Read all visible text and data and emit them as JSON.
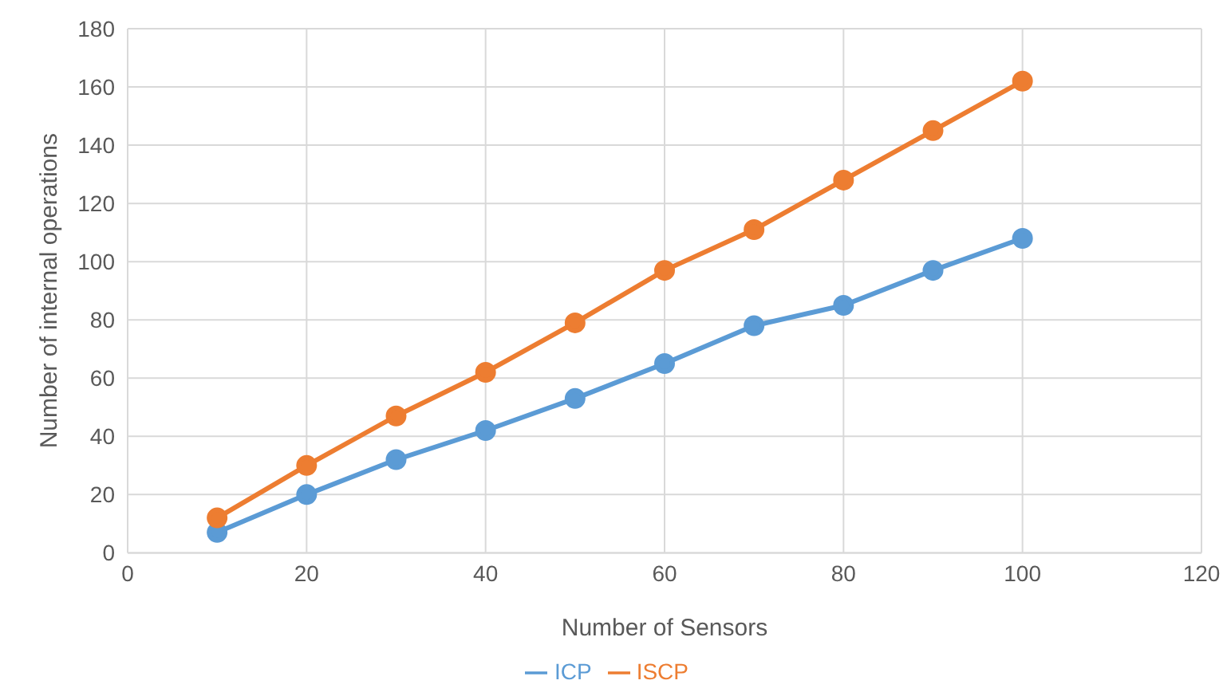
{
  "chart_data": {
    "type": "line",
    "xlabel": "Number of Sensors",
    "ylabel": "Number of internal operations",
    "x": [
      10,
      20,
      30,
      40,
      50,
      60,
      70,
      80,
      90,
      100
    ],
    "series": [
      {
        "name": "ICP",
        "color": "#5b9bd5",
        "values": [
          7,
          20,
          32,
          42,
          53,
          65,
          78,
          85,
          97,
          108
        ]
      },
      {
        "name": "ISCP",
        "color": "#ed7d31",
        "values": [
          12,
          30,
          47,
          62,
          79,
          97,
          111,
          128,
          145,
          162
        ]
      }
    ],
    "xlim": [
      0,
      120
    ],
    "xticks": [
      0,
      20,
      40,
      60,
      80,
      100,
      120
    ],
    "ylim": [
      0,
      180
    ],
    "yticks": [
      0,
      20,
      40,
      60,
      80,
      100,
      120,
      140,
      160,
      180
    ],
    "grid": true,
    "legend": "bottom",
    "marker": "circle",
    "line_style": "solid"
  }
}
